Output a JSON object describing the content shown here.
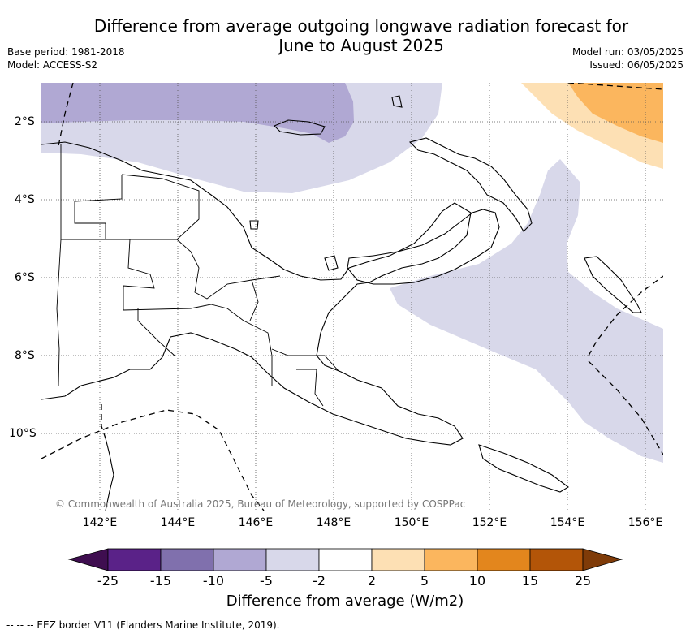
{
  "header": {
    "title_line1": "Difference from average outgoing longwave radiation forecast for",
    "title_line2": "June to August 2025",
    "base_period": "Base period: 1981-2018",
    "model": "Model: ACCESS-S2",
    "model_run": "Model run: 03/05/2025",
    "issued": "Issued: 06/05/2025"
  },
  "map": {
    "lat_labels": [
      "2°S",
      "4°S",
      "6°S",
      "8°S",
      "10°S"
    ],
    "lon_labels": [
      "142°E",
      "144°E",
      "146°E",
      "148°E",
      "150°E",
      "152°E",
      "154°E",
      "156°E"
    ],
    "copyright": "© Commonwealth of Australia 2025, Bureau of Meteorology, supported by COSPPac"
  },
  "colorbar": {
    "ticks": [
      "-25",
      "-15",
      "-10",
      "-5",
      "-2",
      "2",
      "5",
      "10",
      "15",
      "25"
    ],
    "colors": [
      "#3f0e50",
      "#5a2288",
      "#8070ad",
      "#b0a8d3",
      "#d8d8ea",
      "#ffffff",
      "#fde0b4",
      "#fbb65e",
      "#e3861d",
      "#b35508",
      "#7f3b08"
    ],
    "label": "Difference from average (W/m2)"
  },
  "footnote": "-- -- -- EEZ border V11 (Flanders Marine Institute, 2019)."
}
